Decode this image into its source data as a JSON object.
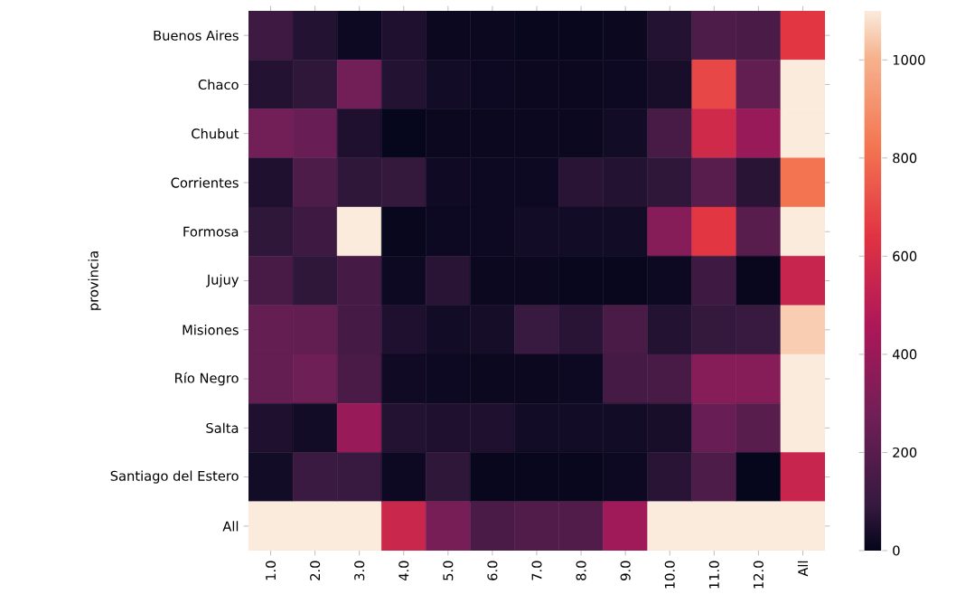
{
  "chart_data": {
    "type": "heatmap",
    "ylabel": "provincia",
    "categories": [
      "1.0",
      "2.0",
      "3.0",
      "4.0",
      "5.0",
      "6.0",
      "7.0",
      "8.0",
      "9.0",
      "10.0",
      "11.0",
      "12.0",
      "All"
    ],
    "y_categories": [
      "Buenos Aires",
      "Chaco",
      "Chubut",
      "Corrientes",
      "Formosa",
      "Jujuy",
      "Misiones",
      "Río Negro",
      "Salta",
      "Santiago del Estero",
      "All"
    ],
    "cells": [
      [
        120,
        60,
        20,
        50,
        15,
        15,
        10,
        10,
        15,
        60,
        170,
        160,
        650
      ],
      [
        60,
        80,
        280,
        60,
        30,
        20,
        15,
        15,
        20,
        40,
        700,
        230,
        1100
      ],
      [
        280,
        250,
        50,
        5,
        15,
        15,
        15,
        15,
        30,
        150,
        580,
        400,
        1100
      ],
      [
        50,
        170,
        80,
        90,
        25,
        20,
        20,
        70,
        60,
        80,
        200,
        70,
        820
      ],
      [
        80,
        120,
        1100,
        10,
        20,
        20,
        30,
        30,
        30,
        340,
        650,
        200,
        1100
      ],
      [
        150,
        80,
        140,
        20,
        70,
        15,
        15,
        10,
        10,
        20,
        120,
        10,
        550
      ],
      [
        240,
        230,
        140,
        50,
        30,
        35,
        100,
        70,
        160,
        60,
        90,
        100,
        1050
      ],
      [
        240,
        270,
        160,
        25,
        20,
        15,
        15,
        20,
        140,
        150,
        340,
        340,
        1100
      ],
      [
        50,
        30,
        400,
        60,
        50,
        50,
        30,
        30,
        30,
        40,
        250,
        200,
        1100
      ],
      [
        30,
        110,
        100,
        20,
        80,
        10,
        10,
        10,
        20,
        70,
        170,
        5,
        550
      ],
      [
        1100,
        1100,
        1100,
        560,
        300,
        160,
        180,
        180,
        420,
        1100,
        1100,
        1100,
        1100
      ]
    ],
    "clim": [
      0,
      1100
    ],
    "cticks": [
      0,
      200,
      400,
      600,
      800,
      1000
    ]
  }
}
